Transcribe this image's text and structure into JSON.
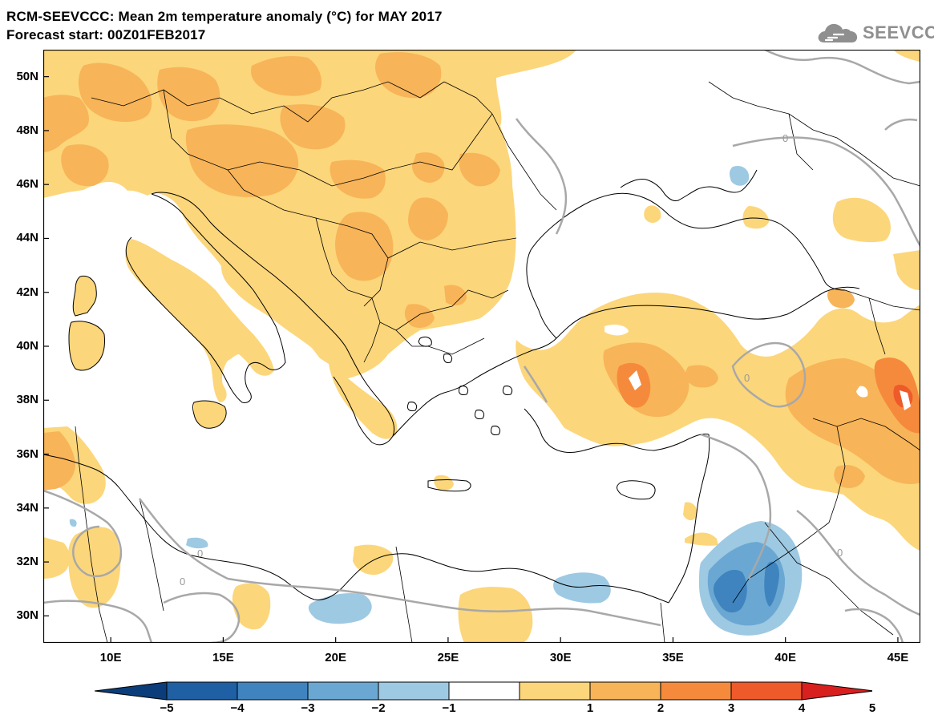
{
  "header": {
    "title_line1": "RCM-SEEVCCC: Mean 2m temperature anomaly (°C) for MAY 2017",
    "title_line2": "Forecast start: 00Z01FEB2017"
  },
  "logo": {
    "text": "SEEVCCC",
    "icon": "cloud-icon"
  },
  "map": {
    "lon_range": [
      7,
      46
    ],
    "lat_range": [
      29,
      51
    ],
    "lat_ticks": [
      {
        "value": 50,
        "label": "50N"
      },
      {
        "value": 48,
        "label": "48N"
      },
      {
        "value": 46,
        "label": "46N"
      },
      {
        "value": 44,
        "label": "44N"
      },
      {
        "value": 42,
        "label": "42N"
      },
      {
        "value": 40,
        "label": "40N"
      },
      {
        "value": 38,
        "label": "38N"
      },
      {
        "value": 36,
        "label": "36N"
      },
      {
        "value": 34,
        "label": "34N"
      },
      {
        "value": 32,
        "label": "32N"
      },
      {
        "value": 30,
        "label": "30N"
      }
    ],
    "lon_ticks": [
      {
        "value": 10,
        "label": "10E"
      },
      {
        "value": 15,
        "label": "15E"
      },
      {
        "value": 20,
        "label": "20E"
      },
      {
        "value": 25,
        "label": "25E"
      },
      {
        "value": 30,
        "label": "30E"
      },
      {
        "value": 35,
        "label": "35E"
      },
      {
        "value": 40,
        "label": "40E"
      },
      {
        "value": 45,
        "label": "45E"
      }
    ],
    "zero_contour_label": "0",
    "shading_colors": {
      "1_to_2": "#fcd67a",
      "2_to_3": "#f8b458",
      "3_to_4": "#f58a3c",
      "4_to_5": "#ef5a2a",
      "-1_to_-2": "#9ec9e2",
      "-2_to_-3": "#6aa8d3",
      "-3_to_-4": "#3f84bf"
    }
  },
  "colorbar": {
    "labels": [
      "−5",
      "−4",
      "−3",
      "−2",
      "−1",
      "1",
      "2",
      "3",
      "4",
      "5"
    ],
    "segments": [
      {
        "range": "<-5",
        "color": "#0b3d7a"
      },
      {
        "range": "-5..-4",
        "color": "#1f5fa3"
      },
      {
        "range": "-4..-3",
        "color": "#3f84bf"
      },
      {
        "range": "-3..-2",
        "color": "#6aa8d3"
      },
      {
        "range": "-2..-1",
        "color": "#9ec9e2"
      },
      {
        "range": "-1..1",
        "color": "#ffffff"
      },
      {
        "range": "1..2",
        "color": "#fcd67a"
      },
      {
        "range": "2..3",
        "color": "#f8b458"
      },
      {
        "range": "3..4",
        "color": "#f58a3c"
      },
      {
        "range": "4..5",
        "color": "#ef5a2a"
      },
      {
        "range": ">5",
        "color": "#d8201f"
      }
    ]
  }
}
